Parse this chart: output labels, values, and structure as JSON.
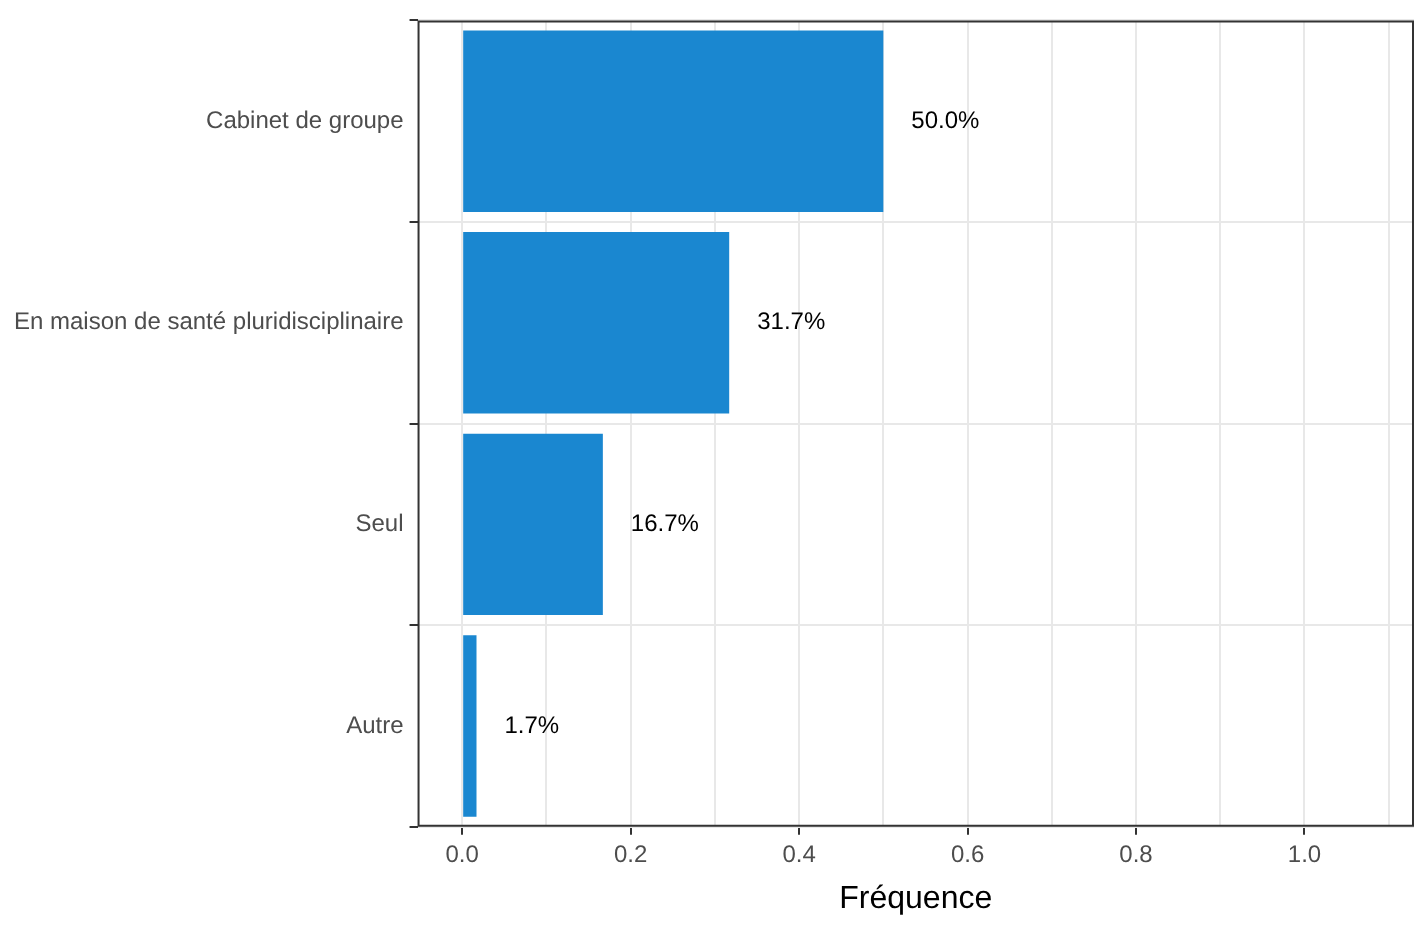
{
  "chart_data": {
    "type": "bar",
    "orientation": "horizontal",
    "xlabel": "Fréquence",
    "categories": [
      "Cabinet de groupe",
      "En maison de santé pluridisciplinaire",
      "Seul",
      "Autre"
    ],
    "values": [
      0.5,
      0.317,
      0.167,
      0.017
    ],
    "value_labels": [
      "50.0%",
      "31.7%",
      "16.7%",
      "1.7%"
    ],
    "color": "#1a87d0",
    "xlim": [
      -0.053,
      1.13
    ],
    "xticks": [
      {
        "value": 0,
        "label": "0.0"
      },
      {
        "value": 0.1,
        "label": null
      },
      {
        "value": 0.2,
        "label": "0.2"
      },
      {
        "value": 0.3,
        "label": null
      },
      {
        "value": 0.4,
        "label": "0.4"
      },
      {
        "value": 0.5,
        "label": null
      },
      {
        "value": 0.6,
        "label": "0.6"
      },
      {
        "value": 0.7,
        "label": null
      },
      {
        "value": 0.8,
        "label": "0.8"
      },
      {
        "value": 0.9,
        "label": null
      },
      {
        "value": 1,
        "label": "1.0"
      },
      {
        "value": 1.1,
        "label": null
      }
    ],
    "grid": true
  }
}
